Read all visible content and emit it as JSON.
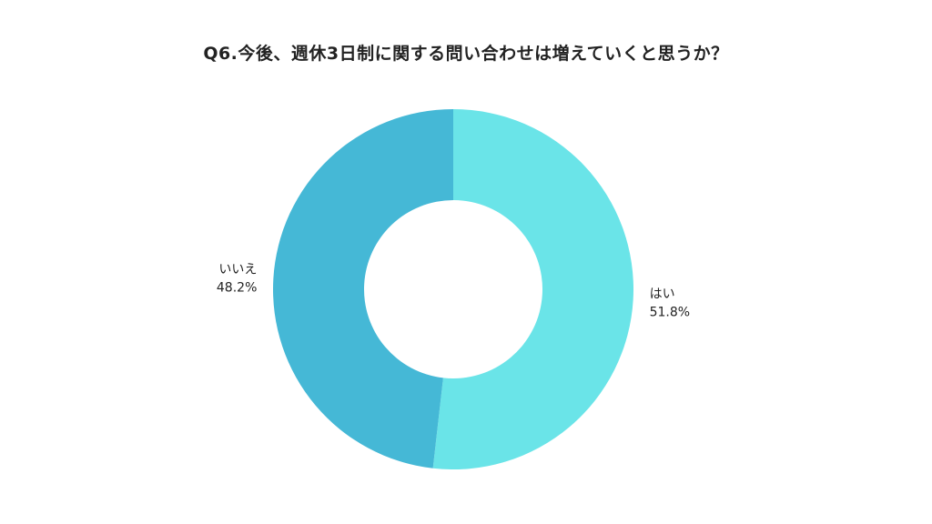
{
  "chart_data": {
    "type": "pie",
    "title": "Q6.今後、週休3日制に関する問い合わせは増えていくと思うか？",
    "donut": true,
    "categories": [
      "はい",
      "いいえ"
    ],
    "values": [
      51.8,
      48.2
    ],
    "value_labels": [
      "51.8%",
      "48.2%"
    ],
    "colors": [
      "#6ae4e8",
      "#45b8d6"
    ],
    "legend": "none"
  }
}
